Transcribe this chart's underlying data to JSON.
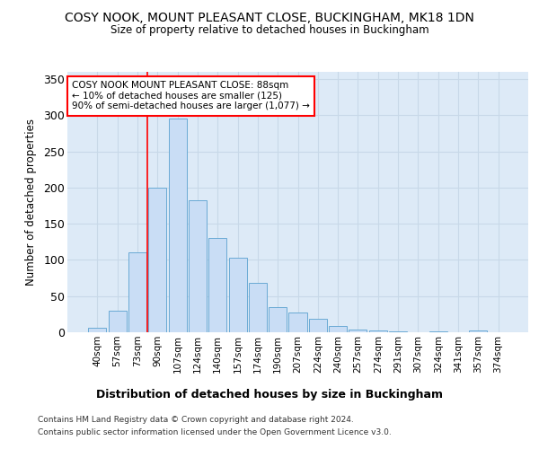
{
  "title": "COSY NOOK, MOUNT PLEASANT CLOSE, BUCKINGHAM, MK18 1DN",
  "subtitle": "Size of property relative to detached houses in Buckingham",
  "xlabel": "Distribution of detached houses by size in Buckingham",
  "ylabel": "Number of detached properties",
  "bar_labels": [
    "40sqm",
    "57sqm",
    "73sqm",
    "90sqm",
    "107sqm",
    "124sqm",
    "140sqm",
    "157sqm",
    "174sqm",
    "190sqm",
    "207sqm",
    "224sqm",
    "240sqm",
    "257sqm",
    "274sqm",
    "291sqm",
    "307sqm",
    "324sqm",
    "341sqm",
    "357sqm",
    "374sqm"
  ],
  "bar_values": [
    6,
    30,
    110,
    200,
    295,
    182,
    130,
    103,
    68,
    35,
    27,
    19,
    9,
    4,
    3,
    1,
    0,
    1,
    0,
    2,
    0
  ],
  "bar_color": "#c9ddf5",
  "bar_edge_color": "#6aaad4",
  "grid_color": "#c8d8e8",
  "background_color": "#ddeaf7",
  "vline_color": "red",
  "vline_x": 3,
  "annotation_text": "COSY NOOK MOUNT PLEASANT CLOSE: 88sqm\n← 10% of detached houses are smaller (125)\n90% of semi-detached houses are larger (1,077) →",
  "footer_line1": "Contains HM Land Registry data © Crown copyright and database right 2024.",
  "footer_line2": "Contains public sector information licensed under the Open Government Licence v3.0.",
  "ylim": [
    0,
    360
  ],
  "yticks": [
    0,
    50,
    100,
    150,
    200,
    250,
    300,
    350
  ]
}
